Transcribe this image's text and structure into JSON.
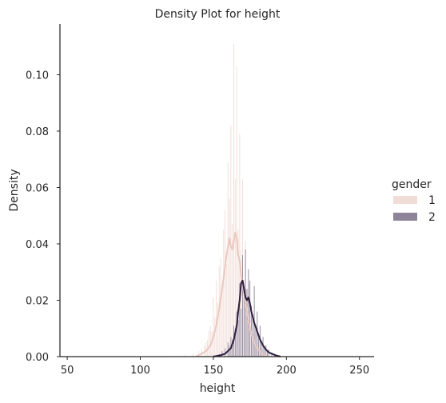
{
  "chart_data": {
    "type": "histogram-density",
    "title": "Density Plot for height",
    "xlabel": "height",
    "ylabel": "Density",
    "xlim": [
      45,
      260
    ],
    "ylim": [
      0,
      0.118
    ],
    "xticks": [
      50,
      100,
      150,
      200,
      250
    ],
    "yticks": [
      0.0,
      0.02,
      0.04,
      0.06,
      0.08,
      0.1
    ],
    "ytick_labels": [
      "0.00",
      "0.02",
      "0.04",
      "0.06",
      "0.08",
      "0.10"
    ],
    "grid": false,
    "legend": {
      "title": "gender",
      "placement": "right",
      "entries": [
        {
          "label": "1",
          "color": "#f1ddd8",
          "line_color": "#ebc7bf"
        },
        {
          "label": "2",
          "color": "#8e8499",
          "line_color": "#2d1e3e"
        }
      ]
    },
    "series": [
      {
        "name": "1",
        "bars": [
          [
            120,
            0.0003
          ],
          [
            130,
            0.0006
          ],
          [
            136,
            0.001
          ],
          [
            140,
            0.002
          ],
          [
            142,
            0.003
          ],
          [
            144,
            0.004
          ],
          [
            145,
            0.005
          ],
          [
            146,
            0.006
          ],
          [
            147,
            0.009
          ],
          [
            148,
            0.011
          ],
          [
            149,
            0.009
          ],
          [
            150,
            0.021
          ],
          [
            151,
            0.014
          ],
          [
            152,
            0.027
          ],
          [
            153,
            0.019
          ],
          [
            154,
            0.032
          ],
          [
            155,
            0.035
          ],
          [
            156,
            0.025
          ],
          [
            157,
            0.045
          ],
          [
            158,
            0.052
          ],
          [
            159,
            0.033
          ],
          [
            160,
            0.069
          ],
          [
            161,
            0.056
          ],
          [
            162,
            0.082
          ],
          [
            163,
            0.047
          ],
          [
            164,
            0.111
          ],
          [
            165,
            0.063
          ],
          [
            166,
            0.103
          ],
          [
            167,
            0.045
          ],
          [
            168,
            0.079
          ],
          [
            169,
            0.038
          ],
          [
            170,
            0.063
          ],
          [
            171,
            0.027
          ],
          [
            172,
            0.041
          ],
          [
            173,
            0.02
          ],
          [
            174,
            0.026
          ],
          [
            175,
            0.012
          ],
          [
            176,
            0.013
          ],
          [
            177,
            0.007
          ],
          [
            178,
            0.008
          ],
          [
            179,
            0.004
          ],
          [
            180,
            0.005
          ],
          [
            182,
            0.002
          ],
          [
            184,
            0.001
          ],
          [
            186,
            0.0006
          ]
        ],
        "kde": [
          [
            138,
            0.0
          ],
          [
            142,
            0.001
          ],
          [
            145,
            0.002
          ],
          [
            148,
            0.004
          ],
          [
            150,
            0.007
          ],
          [
            152,
            0.011
          ],
          [
            154,
            0.017
          ],
          [
            156,
            0.024
          ],
          [
            158,
            0.032
          ],
          [
            159,
            0.036
          ],
          [
            160,
            0.039
          ],
          [
            161,
            0.042
          ],
          [
            162,
            0.039
          ],
          [
            163,
            0.038
          ],
          [
            164,
            0.041
          ],
          [
            165,
            0.044
          ],
          [
            166,
            0.042
          ],
          [
            167,
            0.036
          ],
          [
            168,
            0.034
          ],
          [
            169,
            0.029
          ],
          [
            170,
            0.026
          ],
          [
            172,
            0.019
          ],
          [
            174,
            0.013
          ],
          [
            176,
            0.008
          ],
          [
            178,
            0.005
          ],
          [
            180,
            0.003
          ],
          [
            183,
            0.001
          ],
          [
            187,
            0.0
          ]
        ]
      },
      {
        "name": "2",
        "bars": [
          [
            150,
            0.0004
          ],
          [
            154,
            0.001
          ],
          [
            156,
            0.002
          ],
          [
            158,
            0.003
          ],
          [
            160,
            0.005
          ],
          [
            161,
            0.004
          ],
          [
            162,
            0.007
          ],
          [
            163,
            0.006
          ],
          [
            164,
            0.011
          ],
          [
            165,
            0.01
          ],
          [
            166,
            0.016
          ],
          [
            167,
            0.013
          ],
          [
            168,
            0.026
          ],
          [
            169,
            0.017
          ],
          [
            170,
            0.036
          ],
          [
            171,
            0.021
          ],
          [
            172,
            0.038
          ],
          [
            173,
            0.024
          ],
          [
            174,
            0.031
          ],
          [
            175,
            0.027
          ],
          [
            176,
            0.018
          ],
          [
            177,
            0.015
          ],
          [
            178,
            0.025
          ],
          [
            179,
            0.01
          ],
          [
            180,
            0.016
          ],
          [
            181,
            0.008
          ],
          [
            182,
            0.011
          ],
          [
            183,
            0.005
          ],
          [
            184,
            0.007
          ],
          [
            185,
            0.003
          ],
          [
            186,
            0.004
          ],
          [
            187,
            0.002
          ],
          [
            188,
            0.0025
          ],
          [
            190,
            0.0015
          ],
          [
            192,
            0.001
          ],
          [
            195,
            0.0005
          ]
        ],
        "kde": [
          [
            150,
            0.0
          ],
          [
            155,
            0.0005
          ],
          [
            158,
            0.001
          ],
          [
            160,
            0.002
          ],
          [
            162,
            0.003
          ],
          [
            164,
            0.006
          ],
          [
            166,
            0.011
          ],
          [
            167,
            0.016
          ],
          [
            168,
            0.02
          ],
          [
            169,
            0.026
          ],
          [
            170,
            0.027
          ],
          [
            171,
            0.024
          ],
          [
            172,
            0.021
          ],
          [
            173,
            0.02
          ],
          [
            174,
            0.021
          ],
          [
            175,
            0.019
          ],
          [
            176,
            0.016
          ],
          [
            177,
            0.014
          ],
          [
            178,
            0.012
          ],
          [
            180,
            0.009
          ],
          [
            182,
            0.006
          ],
          [
            184,
            0.004
          ],
          [
            186,
            0.0025
          ],
          [
            188,
            0.0015
          ],
          [
            190,
            0.001
          ],
          [
            193,
            0.0004
          ],
          [
            196,
            0.0
          ]
        ]
      }
    ]
  }
}
